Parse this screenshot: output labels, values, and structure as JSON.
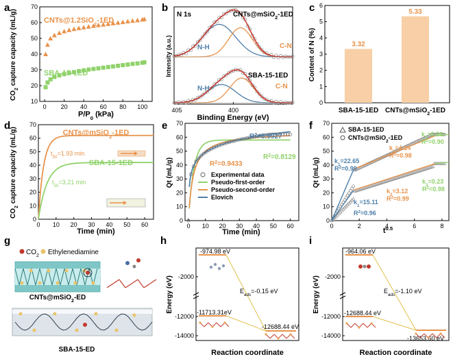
{
  "panels": {
    "a": {
      "label": "a"
    },
    "b": {
      "label": "b"
    },
    "c": {
      "label": "c"
    },
    "d": {
      "label": "d"
    },
    "e": {
      "label": "e"
    },
    "f": {
      "label": "f"
    },
    "g": {
      "label": "g"
    },
    "h": {
      "label": "h"
    },
    "i": {
      "label": "i"
    }
  },
  "colors": {
    "orange": "#e8924a",
    "green": "#8fd26a",
    "blue": "#4d7ea8",
    "light_orange": "#f8cfa6",
    "pink": "#e38a7a"
  },
  "chart_data": [
    {
      "panel": "a",
      "type": "scatter",
      "title": "",
      "xlabel": "P/P0 (kPa)",
      "ylabel": "CO2 capture capacity (mL/g)",
      "xlim": [
        -5,
        110
      ],
      "ylim": [
        10,
        70
      ],
      "xticks": [
        "0",
        "20",
        "40",
        "60",
        "80",
        "100"
      ],
      "yticks": [
        "10",
        "20",
        "30",
        "40",
        "50",
        "60",
        "70"
      ],
      "series": [
        {
          "name": "CNTs@1.2SiO2-1ED",
          "color": "#e8924a",
          "marker": "triangle",
          "x": [
            1,
            3,
            6,
            10,
            15,
            20,
            25,
            30,
            35,
            40,
            45,
            50,
            55,
            60,
            65,
            70,
            75,
            80,
            85,
            90,
            95,
            100,
            102
          ],
          "y": [
            40,
            46,
            50,
            52,
            53.5,
            54.5,
            55.3,
            56,
            56.5,
            57,
            57.5,
            58,
            58.4,
            58.8,
            59.2,
            59.6,
            60,
            60.4,
            60.8,
            61.2,
            61.5,
            62,
            62.3
          ]
        },
        {
          "name": "SBA-15-1ED",
          "color": "#8fd26a",
          "marker": "square",
          "x": [
            1,
            3,
            6,
            10,
            15,
            20,
            25,
            30,
            35,
            40,
            45,
            50,
            55,
            60,
            65,
            70,
            75,
            80,
            85,
            90,
            95,
            100,
            102
          ],
          "y": [
            19,
            22,
            24,
            25.5,
            26.5,
            27.3,
            28,
            28.6,
            29.2,
            29.7,
            30.2,
            30.6,
            31,
            31.4,
            31.8,
            32.2,
            32.6,
            33,
            33.4,
            33.8,
            34.1,
            34.5,
            34.8
          ]
        }
      ],
      "labels": {
        "cnts": "CNTs@1.2SiO2-1ED",
        "sba": "SBA-15-1ED"
      }
    },
    {
      "panel": "b",
      "type": "line",
      "xlabel": "Binding Energy (eV)",
      "ylabel": "Intensity (a.u.)",
      "xlim": [
        405,
        395
      ],
      "xticks": [
        "405",
        "400",
        "395"
      ],
      "title_top": "N 1s",
      "top_sample": "CNTs@mSiO2-1ED",
      "bottom_sample": "SBA-15-1ED",
      "peak_labels": {
        "nh_top": "N-H",
        "cn_top": "C-N",
        "nh_bottom": "N-H",
        "cn_bottom": "C-N"
      }
    },
    {
      "panel": "c",
      "type": "bar",
      "ylabel": "Content of N (%)",
      "ylim": [
        0,
        6
      ],
      "yticks": [
        "0",
        "1",
        "2",
        "3",
        "4",
        "5",
        "6"
      ],
      "categories": [
        "SBA-15-1ED",
        "CNTs@mSiO2-1ED"
      ],
      "values": [
        3.32,
        5.33
      ],
      "value_labels": [
        "3.32",
        "5.33"
      ]
    },
    {
      "panel": "d",
      "type": "line",
      "xlabel": "Time (min)",
      "ylabel": "CO2 capture capacity (mL/g)",
      "xlim": [
        0,
        65
      ],
      "ylim": [
        0,
        70
      ],
      "xticks": [
        "0",
        "10",
        "20",
        "30",
        "40",
        "50",
        "60"
      ],
      "yticks": [
        "0",
        "10",
        "20",
        "30",
        "40",
        "50",
        "60",
        "70"
      ],
      "series": [
        {
          "name": "CNTs@mSiO2-1ED",
          "color": "#e8924a",
          "plateau": 62,
          "t50": 1.93
        },
        {
          "name": "SBA-15-1ED",
          "color": "#8fd26a",
          "plateau": 42,
          "t50": 3.21
        }
      ],
      "annotations": {
        "t50_cnts": "t50=1.93 min",
        "t50_sba": "t50=3.21 min",
        "cnts": "CNTs@mSiO2-1ED",
        "sba": "SBA-15-1ED"
      }
    },
    {
      "panel": "e",
      "type": "line",
      "xlabel": "Time (min)",
      "ylabel": "Qt (mL/g)",
      "xlim": [
        -2,
        65
      ],
      "ylim": [
        0,
        70
      ],
      "xticks": [
        "0",
        "10",
        "20",
        "30",
        "40",
        "50",
        "60"
      ],
      "yticks": [
        "0",
        "10",
        "20",
        "30",
        "40",
        "50",
        "60",
        "70"
      ],
      "legend": [
        "Experimental data",
        "Pseudo-first-order",
        "Pseudo-second-order",
        "Elovich"
      ],
      "r2": {
        "elovich": "R2=0.9927",
        "first": "R2=0.8129",
        "second": "R2=0.9433"
      },
      "series": [
        {
          "name": "Experimental data",
          "color": "#555555"
        },
        {
          "name": "Pseudo-first-order",
          "color": "#8fd26a"
        },
        {
          "name": "Pseudo-second-order",
          "color": "#e8924a"
        },
        {
          "name": "Elovich",
          "color": "#4d7ea8"
        }
      ]
    },
    {
      "panel": "f",
      "type": "scatter",
      "xlabel": "t0.5",
      "ylabel": "Qt (mL/g)",
      "xlim": [
        0,
        8.5
      ],
      "ylim": [
        0,
        70
      ],
      "xticks": [
        "0",
        "2",
        "4",
        "6",
        "8"
      ],
      "yticks": [
        "0",
        "10",
        "20",
        "30",
        "40",
        "50",
        "60",
        "70"
      ],
      "legend": [
        "SBA-15-1ED",
        "CNTs@mSiO2-1ED"
      ],
      "fits": {
        "cnts": {
          "k1": "k1=22.65",
          "r1": "R2=0.99",
          "k2": "k2=4.14",
          "r2": "R2=0.98",
          "k3": "k3=0.50",
          "r3": "R2=0.90"
        },
        "sba": {
          "k1": "k1=15.11",
          "r1": "R2=0.96",
          "k2": "k2=3.12",
          "r2": "R2=0.99",
          "k3": "k3=0.23",
          "r3": "R2=0.98"
        }
      }
    },
    {
      "panel": "g",
      "type": "table",
      "legend_co2": "CO2",
      "legend_ed": "Ethylenediamine",
      "top_name": "CNTs@mSiO2-ED",
      "bottom_name": "SBA-15-ED"
    },
    {
      "panel": "h",
      "type": "line",
      "xlabel": "Reaction coordinate",
      "ylabel": "Energy (eV)",
      "yticks": [
        "-2000",
        "-12000",
        "-14000"
      ],
      "levels": {
        "a": "-974.98 eV",
        "b": "-11713.31eV",
        "c": "-12688.44 eV"
      },
      "eads": "Eads=-0.15 eV"
    },
    {
      "panel": "i",
      "type": "line",
      "xlabel": "Reaction coordinate",
      "ylabel": "Energy (eV)",
      "yticks": [
        "-2000",
        "-12000",
        "-14000"
      ],
      "levels": {
        "a": "-964.06 eV",
        "b": "-12688.44 eV",
        "c": "-13653.60 eV"
      },
      "eads": "Eads=-1.10 eV"
    }
  ]
}
